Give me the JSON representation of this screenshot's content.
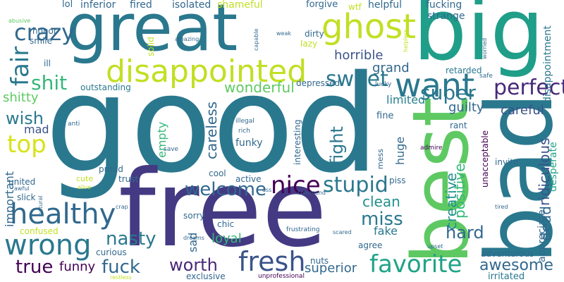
{
  "palette": {
    "dark_purple": "#440154",
    "indigo": "#482878",
    "violet_blue": "#3e4a89",
    "steel_blue": "#31688e",
    "teal_blue": "#26828e",
    "teal": "#1f9e89",
    "sea_green": "#35b779",
    "green": "#6ece58",
    "lime": "#b5de2b",
    "yellow_green": "#d8e219"
  },
  "words": [
    {
      "text": "good",
      "color": "#2a788e"
    },
    {
      "text": "free",
      "color": "#443a83"
    },
    {
      "text": "great",
      "color": "#2a788e"
    },
    {
      "text": "big",
      "color": "#1f9e89"
    },
    {
      "text": "best",
      "color": "#5ec962"
    },
    {
      "text": "bad",
      "color": "#2a788e"
    },
    {
      "text": "disappointed",
      "color": "#c2df23"
    },
    {
      "text": "ghost",
      "color": "#c2df23"
    },
    {
      "text": "want",
      "color": "#2a788e"
    },
    {
      "text": "healthy",
      "color": "#31688e"
    },
    {
      "text": "wrong",
      "color": "#2a788e"
    },
    {
      "text": "fresh",
      "color": "#3b528b"
    },
    {
      "text": "favorite",
      "color": "#20a386"
    },
    {
      "text": "nice",
      "color": "#440154"
    },
    {
      "text": "stupid",
      "color": "#2a788e"
    },
    {
      "text": "sweet",
      "color": "#2a788e"
    },
    {
      "text": "top",
      "color": "#d8e219"
    },
    {
      "text": "fair",
      "color": "#2a788e"
    },
    {
      "text": "crazy",
      "color": "#31688e"
    },
    {
      "text": "perfect",
      "color": "#482878"
    },
    {
      "text": "super",
      "color": "#2a788e"
    },
    {
      "text": "shit",
      "color": "#35b779"
    },
    {
      "text": "welcome",
      "color": "#31688e"
    },
    {
      "text": "nasty",
      "color": "#2a788e"
    },
    {
      "text": "fuck",
      "color": "#31688e"
    },
    {
      "text": "true",
      "color": "#440154"
    },
    {
      "text": "worth",
      "color": "#482878"
    },
    {
      "text": "awesome",
      "color": "#31688e"
    },
    {
      "text": "miss",
      "color": "#2a788e"
    },
    {
      "text": "fight",
      "color": "#2a788e"
    },
    {
      "text": "wish",
      "color": "#2a788e"
    },
    {
      "text": "hard",
      "color": "#31688e"
    },
    {
      "text": "grand",
      "color": "#31688e"
    },
    {
      "text": "horrible",
      "color": "#3b528b"
    },
    {
      "text": "positive",
      "color": "#35b779"
    },
    {
      "text": "creative",
      "color": "#21918c"
    },
    {
      "text": "clean",
      "color": "#21918c"
    },
    {
      "text": "careless",
      "color": "#31688e"
    },
    {
      "text": "wonderful",
      "color": "#5ec962"
    },
    {
      "text": "dead",
      "color": "#31688e"
    },
    {
      "text": "ridiculous",
      "color": "#3b528b"
    },
    {
      "text": "superior",
      "color": "#31688e"
    },
    {
      "text": "guilty",
      "color": "#31688e"
    },
    {
      "text": "careful",
      "color": "#3b528b"
    },
    {
      "text": "loyal",
      "color": "#35b779"
    },
    {
      "text": "funny",
      "color": "#440154"
    },
    {
      "text": "shitty",
      "color": "#5ec962"
    },
    {
      "text": "fake",
      "color": "#2a788e"
    },
    {
      "text": "huge",
      "color": "#31688e"
    },
    {
      "text": "limited",
      "color": "#26828e"
    },
    {
      "text": "empty",
      "color": "#35b779"
    },
    {
      "text": "mad",
      "color": "#3b528b"
    },
    {
      "text": "important",
      "color": "#31688e"
    },
    {
      "text": "sad",
      "color": "#31688e"
    },
    {
      "text": "irritated",
      "color": "#2a788e"
    },
    {
      "text": "funky",
      "color": "#31688e"
    },
    {
      "text": "adventurous",
      "color": "#31688e"
    },
    {
      "text": "disappointment",
      "color": "#2a788e"
    },
    {
      "text": "desperate",
      "color": "#20a386"
    },
    {
      "text": "appreciate",
      "color": "#31688e"
    },
    {
      "text": "retarded",
      "color": "#2a788e"
    },
    {
      "text": "fucking",
      "color": "#31688e"
    },
    {
      "text": "strange",
      "color": "#31688e"
    },
    {
      "text": "helpful",
      "color": "#31688e"
    },
    {
      "text": "forgive",
      "color": "#31688e"
    },
    {
      "text": "wtf",
      "color": "#c2df23"
    },
    {
      "text": "shameful",
      "color": "#c2df23"
    },
    {
      "text": "isolated",
      "color": "#31688e"
    },
    {
      "text": "fired",
      "color": "#31688e"
    },
    {
      "text": "inferior",
      "color": "#31688e"
    },
    {
      "text": "lol",
      "color": "#31688e"
    },
    {
      "text": "honor",
      "color": "#31688e"
    },
    {
      "text": "smile",
      "color": "#31688e"
    },
    {
      "text": "ill",
      "color": "#31688e"
    },
    {
      "text": "outstanding",
      "color": "#2a788e"
    },
    {
      "text": "depressed",
      "color": "#31688e"
    },
    {
      "text": "dirty",
      "color": "#31688e"
    },
    {
      "text": "lazy",
      "color": "#c2df23"
    },
    {
      "text": "solid",
      "color": "#c2df23"
    },
    {
      "text": "amazing",
      "color": "#31688e"
    },
    {
      "text": "abusive",
      "color": "#5ec962"
    },
    {
      "text": "capable",
      "color": "#31688e"
    },
    {
      "text": "weak",
      "color": "#31688e"
    },
    {
      "text": "helpless",
      "color": "#c2df23"
    },
    {
      "text": "worried",
      "color": "#31688e"
    },
    {
      "text": "safe",
      "color": "#31688e"
    },
    {
      "text": "lucky",
      "color": "#31688e"
    },
    {
      "text": "fine",
      "color": "#31688e"
    },
    {
      "text": "rant",
      "color": "#31688e"
    },
    {
      "text": "unacceptable",
      "color": "#440154"
    },
    {
      "text": "invite",
      "color": "#31688e"
    },
    {
      "text": "interesting",
      "color": "#31688e"
    },
    {
      "text": "mess",
      "color": "#31688e"
    },
    {
      "text": "admire",
      "color": "#440154"
    },
    {
      "text": "illegal",
      "color": "#31688e"
    },
    {
      "text": "rich",
      "color": "#31688e"
    },
    {
      "text": "anti",
      "color": "#31688e"
    },
    {
      "text": "save",
      "color": "#31688e"
    },
    {
      "text": "proud",
      "color": "#31688e"
    },
    {
      "text": "united",
      "color": "#31688e"
    },
    {
      "text": "cute",
      "color": "#c2df23"
    },
    {
      "text": "trust",
      "color": "#31688e"
    },
    {
      "text": "cool",
      "color": "#31688e"
    },
    {
      "text": "active",
      "color": "#31688e"
    },
    {
      "text": "piss",
      "color": "#31688e"
    },
    {
      "text": "awful",
      "color": "#31688e"
    },
    {
      "text": "alive",
      "color": "#c2df23"
    },
    {
      "text": "natural",
      "color": "#31688e"
    },
    {
      "text": "slick",
      "color": "#31688e"
    },
    {
      "text": "ass",
      "color": "#31688e"
    },
    {
      "text": "commend",
      "color": "#31688e"
    },
    {
      "text": "crap",
      "color": "#31688e"
    },
    {
      "text": "confused",
      "color": "#c2df23"
    },
    {
      "text": "sorry",
      "color": "#31688e"
    },
    {
      "text": "chic",
      "color": "#31688e"
    },
    {
      "text": "dreams",
      "color": "#31688e"
    },
    {
      "text": "frustrating",
      "color": "#31688e"
    },
    {
      "text": "scared",
      "color": "#31688e"
    },
    {
      "text": "curious",
      "color": "#31688e"
    },
    {
      "text": "agree",
      "color": "#31688e"
    },
    {
      "text": "upset",
      "color": "#31688e"
    },
    {
      "text": "tired",
      "color": "#31688e"
    },
    {
      "text": "nuts",
      "color": "#31688e"
    },
    {
      "text": "exclusive",
      "color": "#31688e"
    },
    {
      "text": "unprofessional",
      "color": "#440154"
    },
    {
      "text": "restless",
      "color": "#c2df23"
    }
  ]
}
